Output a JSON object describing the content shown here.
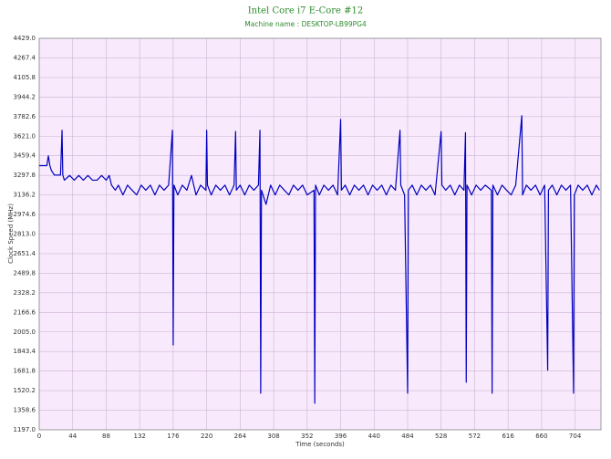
{
  "chart_data": {
    "type": "line",
    "title": "Intel Core i7 E-Core #12",
    "subtitle": "Machine name : DESKTOP-LB99PG4",
    "x_label": "Time (seconds)",
    "y_label": "Clock Speed (MHz)",
    "xlim": [
      0,
      738
    ],
    "ylim": [
      1197,
      4429
    ],
    "xticks": [
      0,
      44,
      88,
      132,
      176,
      220,
      264,
      308,
      352,
      396,
      440,
      484,
      528,
      572,
      616,
      660,
      704
    ],
    "yticks": [
      {
        "value": 1197,
        "label": "1197.0"
      },
      1358.6,
      1520.2,
      1681.8,
      1843.4,
      {
        "value": 2005,
        "label": "2005.0"
      },
      2166.6,
      2328.2,
      2489.8,
      2651.4,
      {
        "value": 2813,
        "label": "2813.0"
      },
      2974.6,
      3136.2,
      3297.8,
      3459.4,
      {
        "value": 3621,
        "label": "3621.0"
      },
      3782.6,
      3944.2,
      4105.8,
      4267.4,
      {
        "value": 4429,
        "label": "4429.0"
      }
    ],
    "grid": true,
    "x": [
      0,
      10,
      12,
      14,
      16,
      20,
      28,
      30,
      31,
      33,
      40,
      46,
      52,
      58,
      64,
      70,
      76,
      82,
      88,
      92,
      95,
      100,
      104,
      110,
      116,
      122,
      128,
      134,
      140,
      146,
      152,
      158,
      164,
      170,
      175,
      176,
      177,
      182,
      188,
      194,
      200,
      206,
      212,
      219,
      220,
      221,
      226,
      232,
      238,
      244,
      250,
      256,
      258,
      259,
      264,
      270,
      276,
      282,
      288,
      290,
      291,
      292,
      298,
      304,
      310,
      316,
      322,
      328,
      334,
      340,
      346,
      352,
      361,
      362,
      363,
      368,
      374,
      380,
      386,
      392,
      396,
      397,
      402,
      408,
      414,
      420,
      426,
      432,
      438,
      444,
      450,
      456,
      462,
      468,
      474,
      475,
      480,
      484,
      485,
      490,
      496,
      502,
      508,
      514,
      520,
      528,
      529,
      534,
      540,
      546,
      552,
      558,
      560,
      561,
      562,
      568,
      574,
      580,
      586,
      594,
      595,
      596,
      602,
      608,
      614,
      620,
      626,
      634,
      635,
      640,
      646,
      652,
      658,
      664,
      668,
      669,
      674,
      680,
      686,
      692,
      698,
      702,
      703,
      708,
      714,
      720,
      726,
      732,
      736
    ],
    "series": [
      {
        "name": "Clock Speed",
        "color": "#0000c0",
        "values": [
          3378,
          3378,
          3459,
          3378,
          3338,
          3300,
          3300,
          3670,
          3300,
          3258,
          3297,
          3258,
          3297,
          3258,
          3297,
          3258,
          3258,
          3297,
          3258,
          3297,
          3217,
          3175,
          3217,
          3136,
          3217,
          3175,
          3136,
          3217,
          3175,
          3217,
          3136,
          3217,
          3175,
          3217,
          3670,
          1898,
          3217,
          3136,
          3217,
          3175,
          3297,
          3136,
          3217,
          3175,
          3670,
          3217,
          3136,
          3217,
          3175,
          3217,
          3136,
          3217,
          3660,
          3175,
          3217,
          3136,
          3217,
          3175,
          3217,
          3670,
          1499,
          3175,
          3058,
          3217,
          3136,
          3217,
          3175,
          3136,
          3217,
          3175,
          3217,
          3136,
          3175,
          1416,
          3217,
          3136,
          3217,
          3175,
          3217,
          3136,
          3760,
          3175,
          3217,
          3136,
          3217,
          3175,
          3217,
          3136,
          3217,
          3175,
          3217,
          3136,
          3217,
          3175,
          3670,
          3217,
          3136,
          1499,
          3175,
          3217,
          3136,
          3217,
          3175,
          3217,
          3136,
          3660,
          3217,
          3175,
          3217,
          3136,
          3217,
          3175,
          3650,
          1590,
          3217,
          3136,
          3217,
          3175,
          3217,
          3175,
          1499,
          3217,
          3136,
          3217,
          3175,
          3136,
          3217,
          3790,
          3136,
          3217,
          3175,
          3217,
          3136,
          3217,
          1690,
          3175,
          3217,
          3136,
          3217,
          3175,
          3217,
          1499,
          3136,
          3217,
          3175,
          3217,
          3136,
          3217,
          3175
        ]
      }
    ]
  }
}
